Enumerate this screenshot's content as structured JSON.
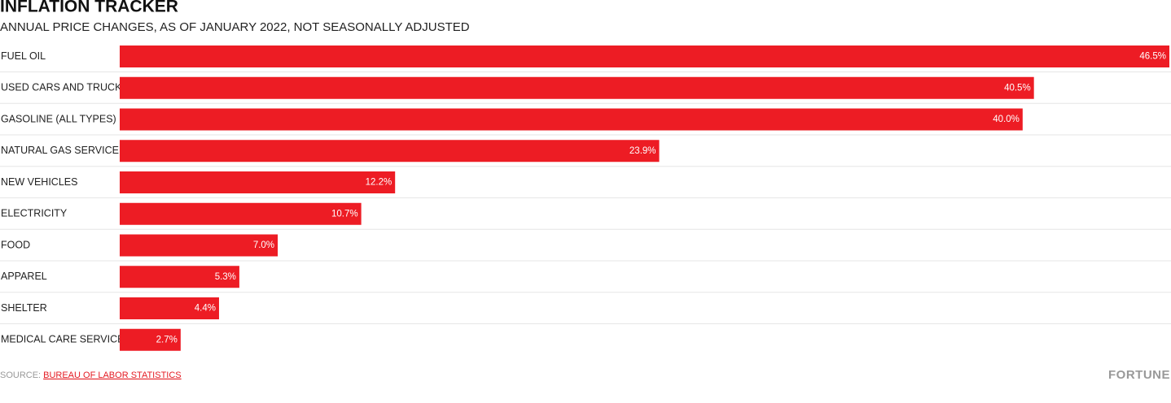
{
  "chart_data": {
    "type": "bar",
    "orientation": "horizontal",
    "title": "INFLATION TRACKER",
    "subtitle": "ANNUAL PRICE CHANGES, AS OF JANUARY 2022, NOT SEASONALLY ADJUSTED",
    "categories": [
      "FUEL OIL",
      "USED CARS AND TRUCKS",
      "GASOLINE (ALL TYPES)",
      "NATURAL GAS SERVICE",
      "NEW VEHICLES",
      "ELECTRICITY",
      "FOOD",
      "APPAREL",
      "SHELTER",
      "MEDICAL CARE SERVICES"
    ],
    "values": [
      46.5,
      40.5,
      40.0,
      23.9,
      12.2,
      10.7,
      7.0,
      5.3,
      4.4,
      2.7
    ],
    "value_labels": [
      "46.5%",
      "40.5%",
      "40.0%",
      "23.9%",
      "12.2%",
      "10.7%",
      "7.0%",
      "5.3%",
      "4.4%",
      "2.7%"
    ],
    "color": "#ed1c24",
    "source_label": "SOURCE:",
    "source": "BUREAU OF LABOR STATISTICS",
    "brand": "FORTUNE"
  }
}
